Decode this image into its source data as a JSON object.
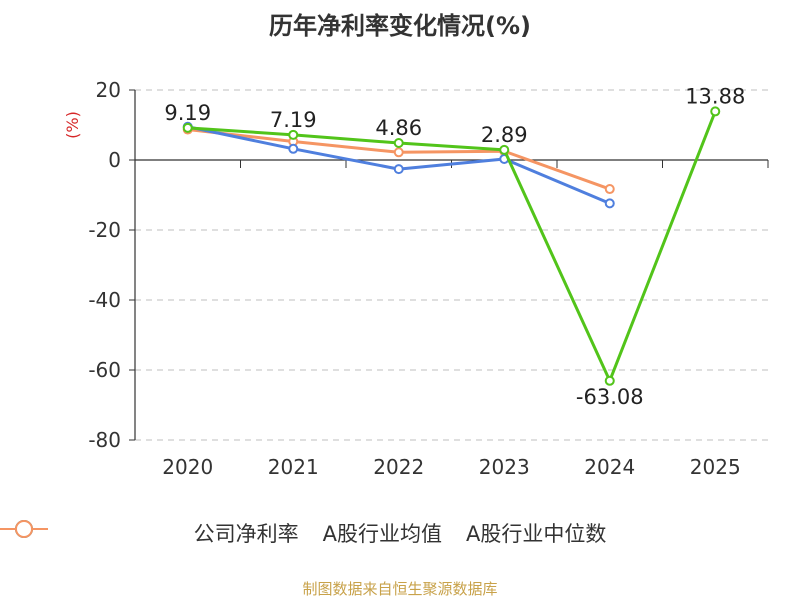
{
  "chart_data": {
    "type": "line",
    "title": "历年净利率变化情况(%)",
    "ylabel": "(%)",
    "categories": [
      "2020",
      "2021",
      "2022",
      "2023",
      "2024",
      "2025"
    ],
    "ylim": [
      -80,
      20
    ],
    "yticks": [
      20,
      0,
      -20,
      -40,
      -60,
      -80
    ],
    "grid": true,
    "legend_position": "bottom",
    "series": [
      {
        "name": "公司净利率",
        "color": "#52c41a",
        "values": [
          9.19,
          7.19,
          4.86,
          2.89,
          -63.08,
          13.88
        ],
        "labels": [
          "9.19",
          "7.19",
          "4.86",
          "2.89",
          "-63.08",
          "13.88"
        ]
      },
      {
        "name": "A股行业均值",
        "color": "#4f7fde",
        "values": [
          9.5,
          3.2,
          -2.6,
          0.3,
          -12.4,
          null
        ]
      },
      {
        "name": "A股行业中位数",
        "color": "#f59563",
        "values": [
          8.7,
          5.3,
          2.2,
          2.5,
          -8.3,
          null
        ]
      }
    ]
  },
  "source": "制图数据来自恒生聚源数据库"
}
